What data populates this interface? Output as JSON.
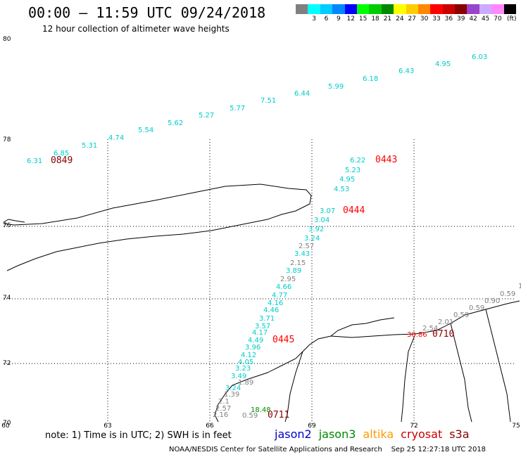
{
  "header": {
    "title": "00:00 – 11:59 UTC 09/24/2018",
    "subtitle": "12 hour collection of altimeter wave heights"
  },
  "legend": {
    "units": "(ft)",
    "bins": [
      {
        "label": "",
        "color": "#808080"
      },
      {
        "label": "3",
        "color": "#00ffff"
      },
      {
        "label": "6",
        "color": "#00ccff"
      },
      {
        "label": "9",
        "color": "#0088ff"
      },
      {
        "label": "12",
        "color": "#0000ff"
      },
      {
        "label": "15",
        "color": "#00ff00"
      },
      {
        "label": "18",
        "color": "#00cc00"
      },
      {
        "label": "21",
        "color": "#008800"
      },
      {
        "label": "24",
        "color": "#ffff00"
      },
      {
        "label": "27",
        "color": "#ffcc00"
      },
      {
        "label": "30",
        "color": "#ff8800"
      },
      {
        "label": "33",
        "color": "#ff0000"
      },
      {
        "label": "36",
        "color": "#cc0000"
      },
      {
        "label": "39",
        "color": "#880000"
      },
      {
        "label": "42",
        "color": "#9944cc"
      },
      {
        "label": "45",
        "color": "#ccaaff"
      },
      {
        "label": "70",
        "color": "#ff88ff"
      },
      {
        "label": "",
        "color": "#000000"
      }
    ]
  },
  "axes": {
    "lon_labels": [
      "60",
      "63",
      "66",
      "69",
      "72",
      "75"
    ],
    "lat_labels": [
      "80",
      "78",
      "76",
      "74",
      "72",
      "70"
    ]
  },
  "colors": {
    "jason2": "#0000cc",
    "jason3": "#008800",
    "altika": "#ff9900",
    "cryosat": "#cc0000",
    "s3a": "#880000",
    "swh_cyan": "#00cccc",
    "swh_gray": "#808080",
    "time_red": "#ff0000",
    "time_darkred": "#880000"
  },
  "observations": [
    {
      "text": "6.03",
      "c": "swh_cyan"
    },
    {
      "text": "4.95",
      "c": "swh_cyan"
    },
    {
      "text": "6.43",
      "c": "swh_cyan"
    },
    {
      "text": "6.18",
      "c": "swh_cyan"
    },
    {
      "text": "5.99",
      "c": "swh_cyan"
    },
    {
      "text": "6.44",
      "c": "swh_cyan"
    },
    {
      "text": "7.51",
      "c": "swh_cyan"
    },
    {
      "text": "5.77",
      "c": "swh_cyan"
    },
    {
      "text": "5.27",
      "c": "swh_cyan"
    },
    {
      "text": "5.62",
      "c": "swh_cyan"
    },
    {
      "text": "5.54",
      "c": "swh_cyan"
    },
    {
      "text": "4.74",
      "c": "swh_cyan"
    },
    {
      "text": "5.31",
      "c": "swh_cyan"
    },
    {
      "text": "6.85",
      "c": "swh_cyan"
    },
    {
      "text": "6.31",
      "c": "swh_cyan"
    },
    {
      "text": "0849",
      "c": "time_darkred"
    },
    {
      "text": "6.22",
      "c": "swh_cyan"
    },
    {
      "text": "0443",
      "c": "time_red"
    },
    {
      "text": "5.23",
      "c": "swh_cyan"
    },
    {
      "text": "4.95",
      "c": "swh_cyan"
    },
    {
      "text": "4.53",
      "c": "swh_cyan"
    },
    {
      "text": "3.07",
      "c": "swh_cyan"
    },
    {
      "text": "0444",
      "c": "time_red"
    },
    {
      "text": "3.04",
      "c": "swh_cyan"
    },
    {
      "text": "3.92",
      "c": "swh_cyan"
    },
    {
      "text": "3.24",
      "c": "swh_cyan"
    },
    {
      "text": "2.57",
      "c": "swh_gray"
    },
    {
      "text": "3.43",
      "c": "swh_cyan"
    },
    {
      "text": "2.15",
      "c": "swh_gray"
    },
    {
      "text": "3.89",
      "c": "swh_cyan"
    },
    {
      "text": "2.95",
      "c": "swh_gray"
    },
    {
      "text": "4.66",
      "c": "swh_cyan"
    },
    {
      "text": "4.77",
      "c": "swh_cyan"
    },
    {
      "text": "4.16",
      "c": "swh_cyan"
    },
    {
      "text": "4.46",
      "c": "swh_cyan"
    },
    {
      "text": "3.71",
      "c": "swh_cyan"
    },
    {
      "text": "3.57",
      "c": "swh_cyan"
    },
    {
      "text": "4.17",
      "c": "swh_cyan"
    },
    {
      "text": "4.49",
      "c": "swh_cyan"
    },
    {
      "text": "0445",
      "c": "time_red"
    },
    {
      "text": "3.96",
      "c": "swh_cyan"
    },
    {
      "text": "4.12",
      "c": "swh_cyan"
    },
    {
      "text": "4.05",
      "c": "swh_cyan"
    },
    {
      "text": "3.23",
      "c": "swh_cyan"
    },
    {
      "text": "3.49",
      "c": "swh_cyan"
    },
    {
      "text": "1.89",
      "c": "swh_gray"
    },
    {
      "text": "3.24",
      "c": "swh_cyan"
    },
    {
      "text": "1.39",
      "c": "swh_gray"
    },
    {
      "text": "2.1",
      "c": "swh_gray"
    },
    {
      "text": "2.57",
      "c": "swh_gray"
    },
    {
      "text": "2.16",
      "c": "swh_gray"
    },
    {
      "text": "18.48",
      "c": "jason3"
    },
    {
      "text": "0.59",
      "c": "swh_gray"
    },
    {
      "text": "0711",
      "c": "time_darkred"
    },
    {
      "text": "0.59",
      "c": "swh_gray"
    },
    {
      "text": "0.90",
      "c": "swh_gray"
    },
    {
      "text": "0.59",
      "c": "swh_gray"
    },
    {
      "text": "0.59",
      "c": "swh_gray"
    },
    {
      "text": "2.01",
      "c": "swh_gray"
    },
    {
      "text": "2.54",
      "c": "swh_gray"
    },
    {
      "text": "30.86",
      "c": "time_red"
    },
    {
      "text": "0710",
      "c": "time_darkred"
    },
    {
      "text": "1",
      "c": "swh_gray"
    }
  ],
  "note": "note: 1) Time is in UTC; 2) SWH is in feet",
  "satellites": [
    "jason2",
    "jason3",
    "altika",
    "cryosat",
    "s3a"
  ],
  "footer": "NOAA/NESDIS Center for Satellite Applications and Research    Sep 25 12:27:18 UTC 2018"
}
